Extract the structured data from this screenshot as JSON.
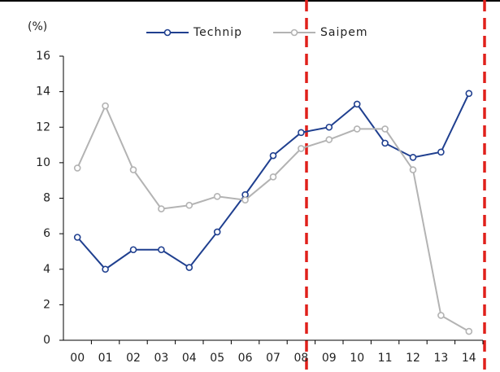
{
  "chart_data": {
    "type": "line",
    "y_label": "(%)",
    "categories": [
      "00",
      "01",
      "02",
      "03",
      "04",
      "05",
      "06",
      "07",
      "08",
      "09",
      "10",
      "11",
      "12",
      "13",
      "14"
    ],
    "series": [
      {
        "name": "Technip",
        "color": "#1f3f8f",
        "values": [
          5.8,
          4.0,
          5.1,
          5.1,
          4.1,
          6.1,
          8.2,
          10.4,
          11.7,
          12.0,
          13.3,
          11.1,
          10.3,
          10.6,
          13.9
        ]
      },
      {
        "name": "Saipem",
        "color": "#b3b3b3",
        "values": [
          9.7,
          13.2,
          9.6,
          7.4,
          7.6,
          8.1,
          7.9,
          9.2,
          10.8,
          11.3,
          11.9,
          11.9,
          9.6,
          1.4,
          0.5
        ]
      }
    ],
    "ylim": [
      0,
      16
    ],
    "yticks": [
      0,
      2,
      4,
      6,
      8,
      10,
      12,
      14,
      16
    ],
    "legend": "top"
  }
}
